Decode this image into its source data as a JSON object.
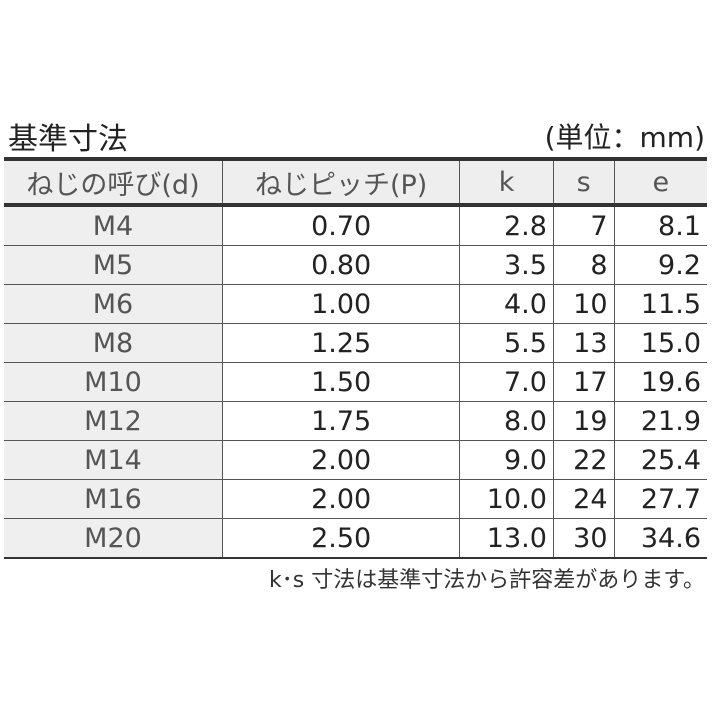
{
  "title": "基準寸法",
  "unit": "(単位：mm)",
  "table": {
    "headers": [
      "ねじの呼び(d)",
      "ねじピッチ(P)",
      "k",
      "s",
      "e"
    ],
    "rows": [
      [
        "M4",
        "0.70",
        "2.8",
        "7",
        "8.1"
      ],
      [
        "M5",
        "0.80",
        "3.5",
        "8",
        "9.2"
      ],
      [
        "M6",
        "1.00",
        "4.0",
        "10",
        "11.5"
      ],
      [
        "M8",
        "1.25",
        "5.5",
        "13",
        "15.0"
      ],
      [
        "M10",
        "1.50",
        "7.0",
        "17",
        "19.6"
      ],
      [
        "M12",
        "1.75",
        "8.0",
        "19",
        "21.9"
      ],
      [
        "M14",
        "2.00",
        "9.0",
        "22",
        "25.4"
      ],
      [
        "M16",
        "2.00",
        "10.0",
        "24",
        "27.7"
      ],
      [
        "M20",
        "2.50",
        "13.0",
        "30",
        "34.6"
      ]
    ]
  },
  "note": "k･s 寸法は基準寸法から許容差があります。"
}
